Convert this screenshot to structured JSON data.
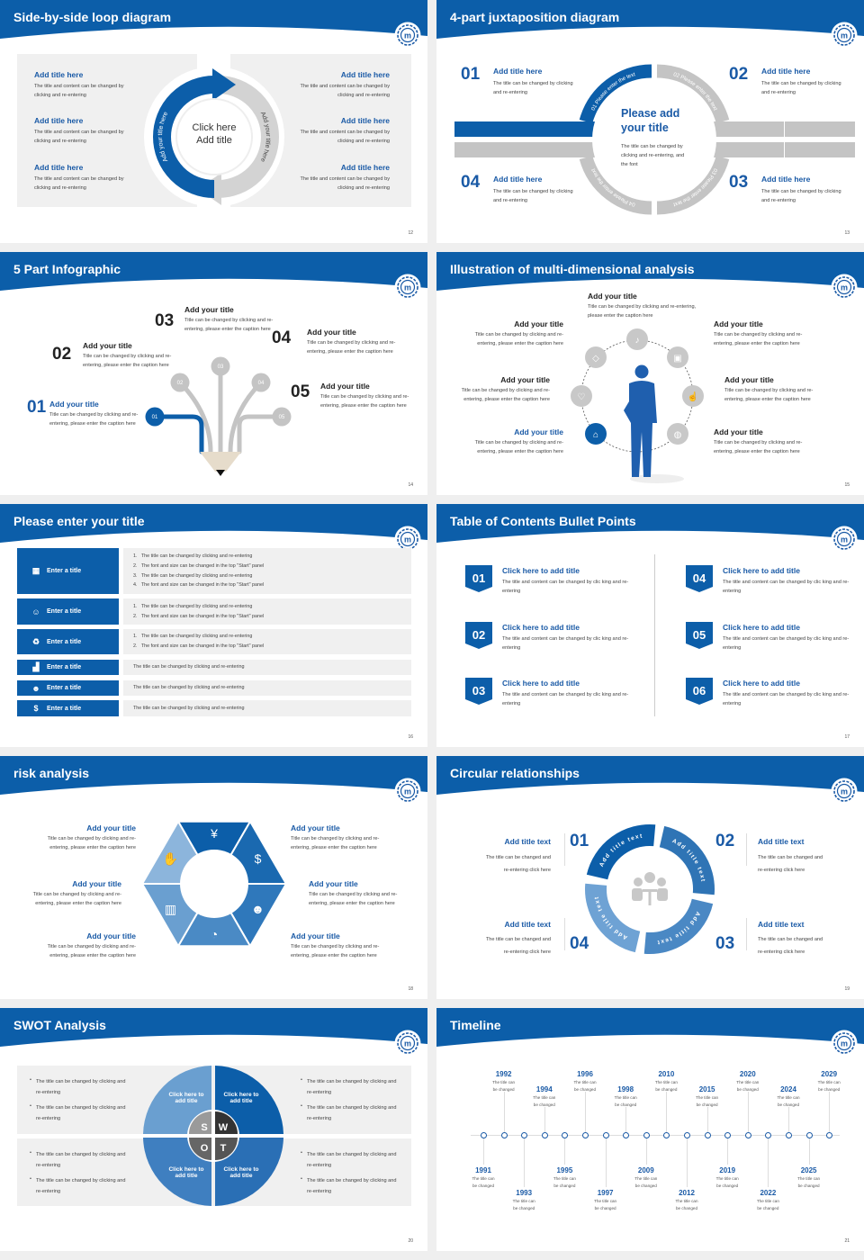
{
  "colors": {
    "brand_blue": "#0c5ea9",
    "title_blue": "#1a5aa6",
    "panel_grey": "#f0f0f0",
    "ring_grey": "#c4c4c4"
  },
  "s12": {
    "title": "Side-by-side loop diagram",
    "page": "12",
    "items": [
      {
        "title": "Add title here",
        "body": "The title and content can be changed by clicking and re-entering"
      },
      {
        "title": "Add title here",
        "body": "The title and content can be changed by clicking and re-entering"
      },
      {
        "title": "Add title here",
        "body": "The title and content can be changed by clicking and re-entering"
      },
      {
        "title": "Add title here",
        "body": "The title and content can be changed by clicking and re-entering"
      },
      {
        "title": "Add title here",
        "body": "The title and content can be changed by clicking and re-entering"
      },
      {
        "title": "Add title here",
        "body": "The title and content can be changed by clicking and re-entering"
      }
    ],
    "center_line1": "Click here",
    "center_line2": "Add title",
    "arc_left": "Add your title here",
    "arc_right": "Add your title here"
  },
  "s13": {
    "title": "4-part juxtaposition diagram",
    "page": "13",
    "items": [
      {
        "num": "01",
        "title": "Add title here",
        "body": "The title can be changed by clicking and re-entering",
        "arc": "01 Please enter the text"
      },
      {
        "num": "02",
        "title": "Add title here",
        "body": "The title can be changed by clicking and re-entering",
        "arc": "02 Please enter the text"
      },
      {
        "num": "03",
        "title": "Add title here",
        "body": "The title can be changed by clicking and re-entering",
        "arc": "03 Please enter the text"
      },
      {
        "num": "04",
        "title": "Add title here",
        "body": "The title can be changed by clicking and re-entering",
        "arc": "04 Please enter the text"
      }
    ],
    "center_title": "Please add your title",
    "center_body": "The title can be changed by clicking and re-entering, and the font"
  },
  "s14": {
    "title": "5 Part Infographic",
    "page": "14",
    "items": [
      {
        "num": "01",
        "title": "Add your title",
        "body": "Title can be changed by clicking and re-entering, please enter the caption here"
      },
      {
        "num": "02",
        "title": "Add your title",
        "body": "Title can be changed by clicking and re-entering, please enter the caption here"
      },
      {
        "num": "03",
        "title": "Add your title",
        "body": "Title can be changed by clicking and re-entering, please enter the caption here"
      },
      {
        "num": "04",
        "title": "Add your title",
        "body": "Title can be changed by clicking and re-entering, please enter the caption here"
      },
      {
        "num": "05",
        "title": "Add your title",
        "body": "Title can be changed by clicking and re-entering, please enter the caption here"
      }
    ]
  },
  "s15": {
    "title": "Illustration of multi-dimensional analysis",
    "page": "15",
    "top": {
      "title": "Add your title",
      "body": "Title can be changed by clicking and re-entering, please enter the caption here"
    },
    "items": [
      {
        "title": "Add your title",
        "body": "Title can be changed by clicking and re-entering, please enter the caption here"
      },
      {
        "title": "Add your title",
        "body": "Title can be changed by clicking and re-entering, please enter the caption here"
      },
      {
        "title": "Add your title",
        "body": "Title can be changed by clicking and re-entering, please enter the caption here"
      },
      {
        "title": "Add your title",
        "body": "Title can be changed by clicking and re-entering, please enter the caption here"
      },
      {
        "title": "Add your title",
        "body": "Title can be changed by clicking and re-entering, please enter the caption here"
      },
      {
        "title": "Add your title",
        "body": "Title can be changed by clicking and re-entering, please enter the caption here"
      }
    ],
    "icons": [
      "bell-icon",
      "lock-icon",
      "thumbs-up-icon",
      "globe-icon",
      "graduation-cap-icon",
      "heart-icon",
      "diamond-icon"
    ]
  },
  "s16": {
    "title": "Please enter your title",
    "page": "16",
    "rows": [
      {
        "label": "Enter a title",
        "icon": "meeting-icon",
        "lines": [
          "1.   The title can be changed by clicking and re-entering",
          "2.   The font and size can be changed in the top \"Start\" panel",
          "3.   The title can be changed by clicking and re-entering",
          "4.   The font and size can be changed in the top \"Start\" panel"
        ]
      },
      {
        "label": "Enter a title",
        "icon": "user-group-icon",
        "lines": [
          "1.   The title can be changed by clicking and re-entering",
          "2.   The font and size can be changed in the top \"Start\" panel"
        ]
      },
      {
        "label": "Enter a title",
        "icon": "recycle-icon",
        "lines": [
          "1.   The title can be changed by clicking and re-entering",
          "2.   The font and size can be changed in the top \"Start\" panel"
        ]
      },
      {
        "label": "Enter a title",
        "icon": "bar-chart-icon",
        "lines": [
          "The title can be changed by clicking and re-entering"
        ]
      },
      {
        "label": "Enter a title",
        "icon": "team-icon",
        "lines": [
          "The title can be changed by clicking and re-entering"
        ]
      },
      {
        "label": "Enter a title",
        "icon": "money-hand-icon",
        "lines": [
          "The title can be changed by clicking and re-entering"
        ]
      }
    ]
  },
  "s17": {
    "title": "Table of Contents Bullet Points",
    "page": "17",
    "items": [
      {
        "num": "01",
        "title": "Click here to add title",
        "body": "The title and content can be changed by clic king and re-entering"
      },
      {
        "num": "02",
        "title": "Click here to add title",
        "body": "The title and content can be changed by clic king and re-entering"
      },
      {
        "num": "03",
        "title": "Click here to add title",
        "body": "The title and content can be changed by clic king and re-entering"
      },
      {
        "num": "04",
        "title": "Click here to add title",
        "body": "The title and content can be changed by clic king and re-entering"
      },
      {
        "num": "05",
        "title": "Click here to add title",
        "body": "The title and content can be changed by clic king and re-entering"
      },
      {
        "num": "06",
        "title": "Click here to add title",
        "body": "The title and content can be changed by clic king and re-entering"
      }
    ]
  },
  "s18": {
    "title": "risk analysis",
    "page": "18",
    "items": [
      {
        "title": "Add your title",
        "body": "Title can be changed by clicking and re-entering, please enter the caption here"
      },
      {
        "title": "Add your title",
        "body": "Title can be changed by clicking and re-entering, please enter the caption here"
      },
      {
        "title": "Add your title",
        "body": "Title can be changed by clicking and re-entering, please enter the caption here"
      },
      {
        "title": "Add your title",
        "body": "Title can be changed by clicking and re-entering, please enter the caption here"
      },
      {
        "title": "Add your title",
        "body": "Title can be changed by clicking and re-entering, please enter the caption here"
      },
      {
        "title": "Add your title",
        "body": "Title can be changed by clicking and re-entering, please enter the caption here"
      }
    ],
    "icons": [
      "money-bag-icon",
      "coins-icon",
      "people-icon",
      "pie-chart-icon",
      "building-icon",
      "hand-money-icon"
    ]
  },
  "s19": {
    "title": "Circular relationships",
    "page": "19",
    "items": [
      {
        "num": "01",
        "title": "Add title text",
        "body": "The title can be changed and re-entering click here",
        "arc": "Add title text"
      },
      {
        "num": "02",
        "title": "Add title text",
        "body": "The title can be changed and re-entering click here",
        "arc": "Add title text"
      },
      {
        "num": "03",
        "title": "Add title text",
        "body": "The title can be changed and re-entering click here",
        "arc": "Add title text"
      },
      {
        "num": "04",
        "title": "Add title text",
        "body": "The title can be changed and re-entering click here",
        "arc": "Add title text"
      }
    ]
  },
  "s20": {
    "title": "SWOT Analysis",
    "page": "20",
    "letters": [
      "S",
      "W",
      "O",
      "T"
    ],
    "quadrant_label": "Click here to add title",
    "bullet": "The title can be changed by clicking and re-entering"
  },
  "s21": {
    "title": "Timeline",
    "page": "21",
    "events": [
      {
        "year": "1991",
        "text": "The title can be changed"
      },
      {
        "year": "1992",
        "text": "The title can be changed"
      },
      {
        "year": "1993",
        "text": "The title can be changed"
      },
      {
        "year": "1994",
        "text": "The title can be changed"
      },
      {
        "year": "1995",
        "text": "The title can be changed"
      },
      {
        "year": "1996",
        "text": "The title can be changed"
      },
      {
        "year": "1997",
        "text": "The title can be changed"
      },
      {
        "year": "1998",
        "text": "The title can be changed"
      },
      {
        "year": "2009",
        "text": "The title can be changed"
      },
      {
        "year": "2010",
        "text": "The title can be changed"
      },
      {
        "year": "2012",
        "text": "The title can be changed"
      },
      {
        "year": "2015",
        "text": "The title can be changed"
      },
      {
        "year": "2019",
        "text": "The title can be changed"
      },
      {
        "year": "2020",
        "text": "The title can be changed"
      },
      {
        "year": "2022",
        "text": "The title can be changed"
      },
      {
        "year": "2024",
        "text": "The title can be changed"
      },
      {
        "year": "2025",
        "text": "The title can be changed"
      },
      {
        "year": "2029",
        "text": "The title can be changed"
      }
    ]
  }
}
